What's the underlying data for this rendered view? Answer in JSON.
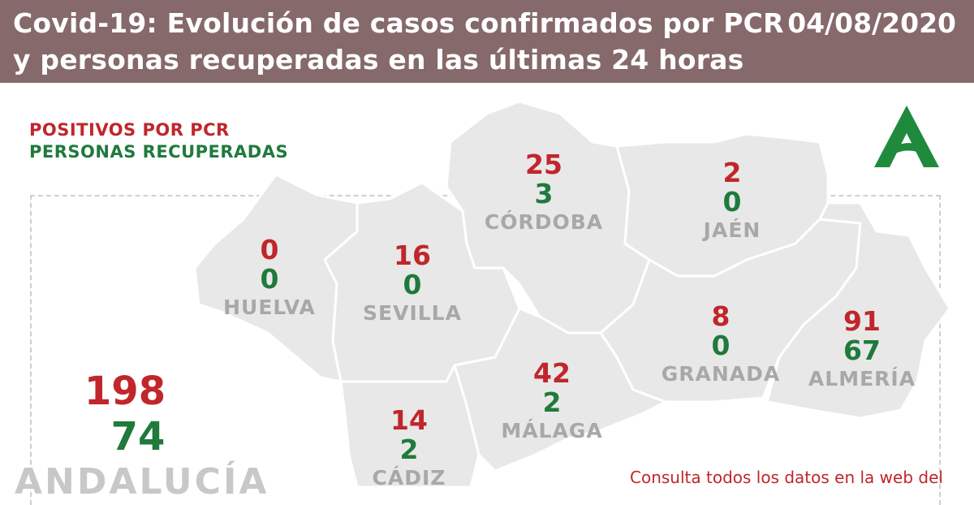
{
  "header": {
    "title": "Covid-19: Evolución de casos confirmados por PCR y personas recuperadas en las últimas 24 horas",
    "date": "04/08/2020"
  },
  "legend": {
    "positivos": "POSITIVOS POR PCR",
    "recuperadas": "PERSONAS RECUPERADAS"
  },
  "colors": {
    "header_bg": "#86696a",
    "positive": "#c0262b",
    "recovered": "#1f7a3c",
    "province_fill": "#e8e8e8",
    "name_gray": "#a8a8a8"
  },
  "provinces": {
    "cordoba": {
      "name": "CÓRDOBA",
      "pcr": "25",
      "recovered": "3"
    },
    "jaen": {
      "name": "JAÉN",
      "pcr": "2",
      "recovered": "0"
    },
    "huelva": {
      "name": "HUELVA",
      "pcr": "0",
      "recovered": "0"
    },
    "sevilla": {
      "name": "SEVILLA",
      "pcr": "16",
      "recovered": "0"
    },
    "granada": {
      "name": "GRANADA",
      "pcr": "8",
      "recovered": "0"
    },
    "almeria": {
      "name": "ALMERÍA",
      "pcr": "91",
      "recovered": "67"
    },
    "malaga": {
      "name": "MÁLAGA",
      "pcr": "42",
      "recovered": "2"
    },
    "cadiz": {
      "name": "CÁDIZ",
      "pcr": "14",
      "recovered": "2"
    }
  },
  "total": {
    "name": "ANDALUCÍA",
    "pcr": "198",
    "recovered": "74"
  },
  "footer": {
    "consulta": "Consulta todos los datos en la web del"
  },
  "logo": {
    "icon": "junta-de-andalucia-logo",
    "color": "#1f8a3c"
  }
}
